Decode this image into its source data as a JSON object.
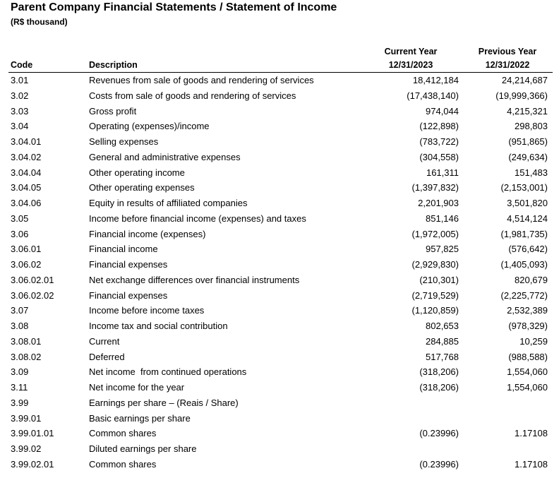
{
  "title": "Parent Company Financial Statements / Statement of Income",
  "subtitle": "(R$ thousand)",
  "headers": {
    "code": "Code",
    "description": "Description",
    "current_line1": "Current Year",
    "current_line2": "12/31/2023",
    "previous_line1": "Previous Year",
    "previous_line2": "12/31/2022"
  },
  "rows": [
    {
      "code": "3.01",
      "desc": "Revenues from sale of goods and rendering of services",
      "cur": "18,412,184",
      "prev": "24,214,687"
    },
    {
      "code": "3.02",
      "desc": "Costs from sale of goods and rendering of services",
      "cur": "(17,438,140)",
      "prev": "(19,999,366)"
    },
    {
      "code": "3.03",
      "desc": "Gross profit",
      "cur": "974,044",
      "prev": "4,215,321"
    },
    {
      "code": "3.04",
      "desc": "Operating (expenses)/income",
      "cur": "(122,898)",
      "prev": "298,803"
    },
    {
      "code": "3.04.01",
      "desc": "Selling expenses",
      "cur": "(783,722)",
      "prev": "(951,865)"
    },
    {
      "code": "3.04.02",
      "desc": "General and administrative expenses",
      "cur": "(304,558)",
      "prev": "(249,634)"
    },
    {
      "code": "3.04.04",
      "desc": "Other operating income",
      "cur": "161,311",
      "prev": "151,483"
    },
    {
      "code": "3.04.05",
      "desc": "Other operating expenses",
      "cur": "(1,397,832)",
      "prev": "(2,153,001)"
    },
    {
      "code": "3.04.06",
      "desc": "Equity in results of affiliated companies",
      "cur": "2,201,903",
      "prev": "3,501,820"
    },
    {
      "code": "3.05",
      "desc": "Income before financial income (expenses) and taxes",
      "cur": "851,146",
      "prev": "4,514,124"
    },
    {
      "code": "3.06",
      "desc": "Financial income (expenses)",
      "cur": "(1,972,005)",
      "prev": "(1,981,735)"
    },
    {
      "code": "3.06.01",
      "desc": "Financial income",
      "cur": "957,825",
      "prev": "(576,642)"
    },
    {
      "code": "3.06.02",
      "desc": "Financial expenses",
      "cur": "(2,929,830)",
      "prev": "(1,405,093)"
    },
    {
      "code": "3.06.02.01",
      "desc": "Net exchange differences over financial instruments",
      "cur": "(210,301)",
      "prev": "820,679"
    },
    {
      "code": "3.06.02.02",
      "desc": "Financial expenses",
      "cur": "(2,719,529)",
      "prev": "(2,225,772)"
    },
    {
      "code": "3.07",
      "desc": "Income before income taxes",
      "cur": "(1,120,859)",
      "prev": "2,532,389"
    },
    {
      "code": "3.08",
      "desc": "Income tax and social contribution",
      "cur": "802,653",
      "prev": "(978,329)"
    },
    {
      "code": "3.08.01",
      "desc": "Current",
      "cur": "284,885",
      "prev": "10,259"
    },
    {
      "code": "3.08.02",
      "desc": "Deferred",
      "cur": "517,768",
      "prev": "(988,588)"
    },
    {
      "code": "3.09",
      "desc": "Net income  from continued operations",
      "cur": "(318,206)",
      "prev": "1,554,060"
    },
    {
      "code": "3.11",
      "desc": "Net income for the year",
      "cur": "(318,206)",
      "prev": "1,554,060"
    },
    {
      "code": "3.99",
      "desc": "Earnings per share – (Reais / Share)",
      "cur": "",
      "prev": ""
    },
    {
      "code": "3.99.01",
      "desc": "Basic earnings per share",
      "cur": "",
      "prev": ""
    },
    {
      "code": "3.99.01.01",
      "desc": "Common shares",
      "cur": "(0.23996)",
      "prev": "1.17108"
    },
    {
      "code": "3.99.02",
      "desc": "Diluted earnings per share",
      "cur": "",
      "prev": ""
    },
    {
      "code": "3.99.02.01",
      "desc": "Common shares",
      "cur": "(0.23996)",
      "prev": "1.17108"
    }
  ]
}
